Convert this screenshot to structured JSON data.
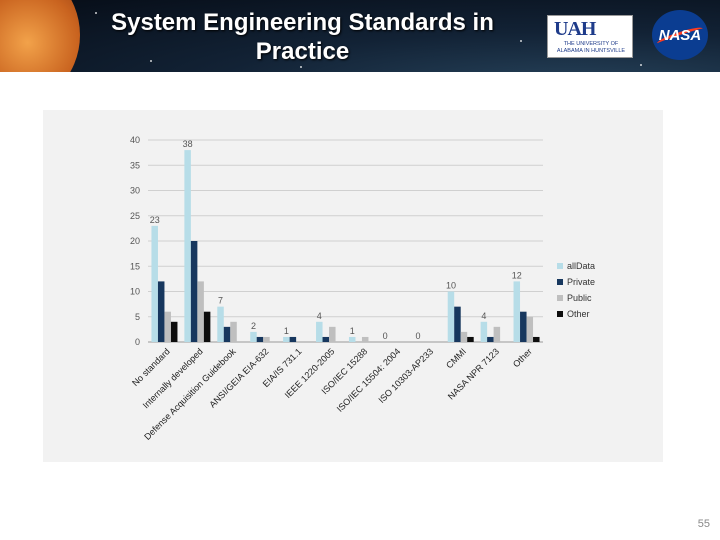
{
  "slide": {
    "title_line1": "System Engineering Standards in",
    "title_line2": "Practice",
    "page_number": "55"
  },
  "logos": {
    "uah_mark": "UAH",
    "uah_text_line1": "THE UNIVERSITY OF",
    "uah_text_line2": "ALABAMA IN HUNTSVILLE",
    "nasa_text": "NASA"
  },
  "chart_data": {
    "type": "bar",
    "title": "",
    "xlabel": "",
    "ylabel": "",
    "ylim": [
      0,
      40
    ],
    "yticks": [
      0,
      5,
      10,
      15,
      20,
      25,
      30,
      35,
      40
    ],
    "categories": [
      "No standard",
      "Internally developed",
      "Defense Acquisition Guidebook",
      "ANSI/GEIA EIA-632",
      "EIA/IS 731.1",
      "IEEE 1220-2005",
      "ISO/IEC 15288",
      "ISO/IEC 15504: 2004",
      "ISO 10303-AP233",
      "CMMI",
      "NASA NPR 7123",
      "Other"
    ],
    "series": [
      {
        "name": "allData",
        "color": "#b7dde8",
        "values": [
          23,
          38,
          7,
          2,
          1,
          4,
          1,
          0,
          0,
          10,
          4,
          12
        ]
      },
      {
        "name": "Private",
        "color": "#17375e",
        "values": [
          12,
          20,
          3,
          1,
          1,
          1,
          0,
          0,
          0,
          7,
          1,
          6
        ]
      },
      {
        "name": "Public",
        "color": "#bfbfbf",
        "values": [
          6,
          12,
          4,
          1,
          0,
          3,
          1,
          0,
          0,
          2,
          3,
          5
        ]
      },
      {
        "name": "Other",
        "color": "#0d0d0d",
        "values": [
          4,
          6,
          0,
          0,
          0,
          0,
          0,
          0,
          0,
          1,
          0,
          1
        ]
      }
    ],
    "data_labels": [
      "23",
      "38",
      "7",
      "2",
      "1",
      "4",
      "1",
      "0",
      "0",
      "10",
      "4",
      "12"
    ],
    "legend_position": "right"
  }
}
